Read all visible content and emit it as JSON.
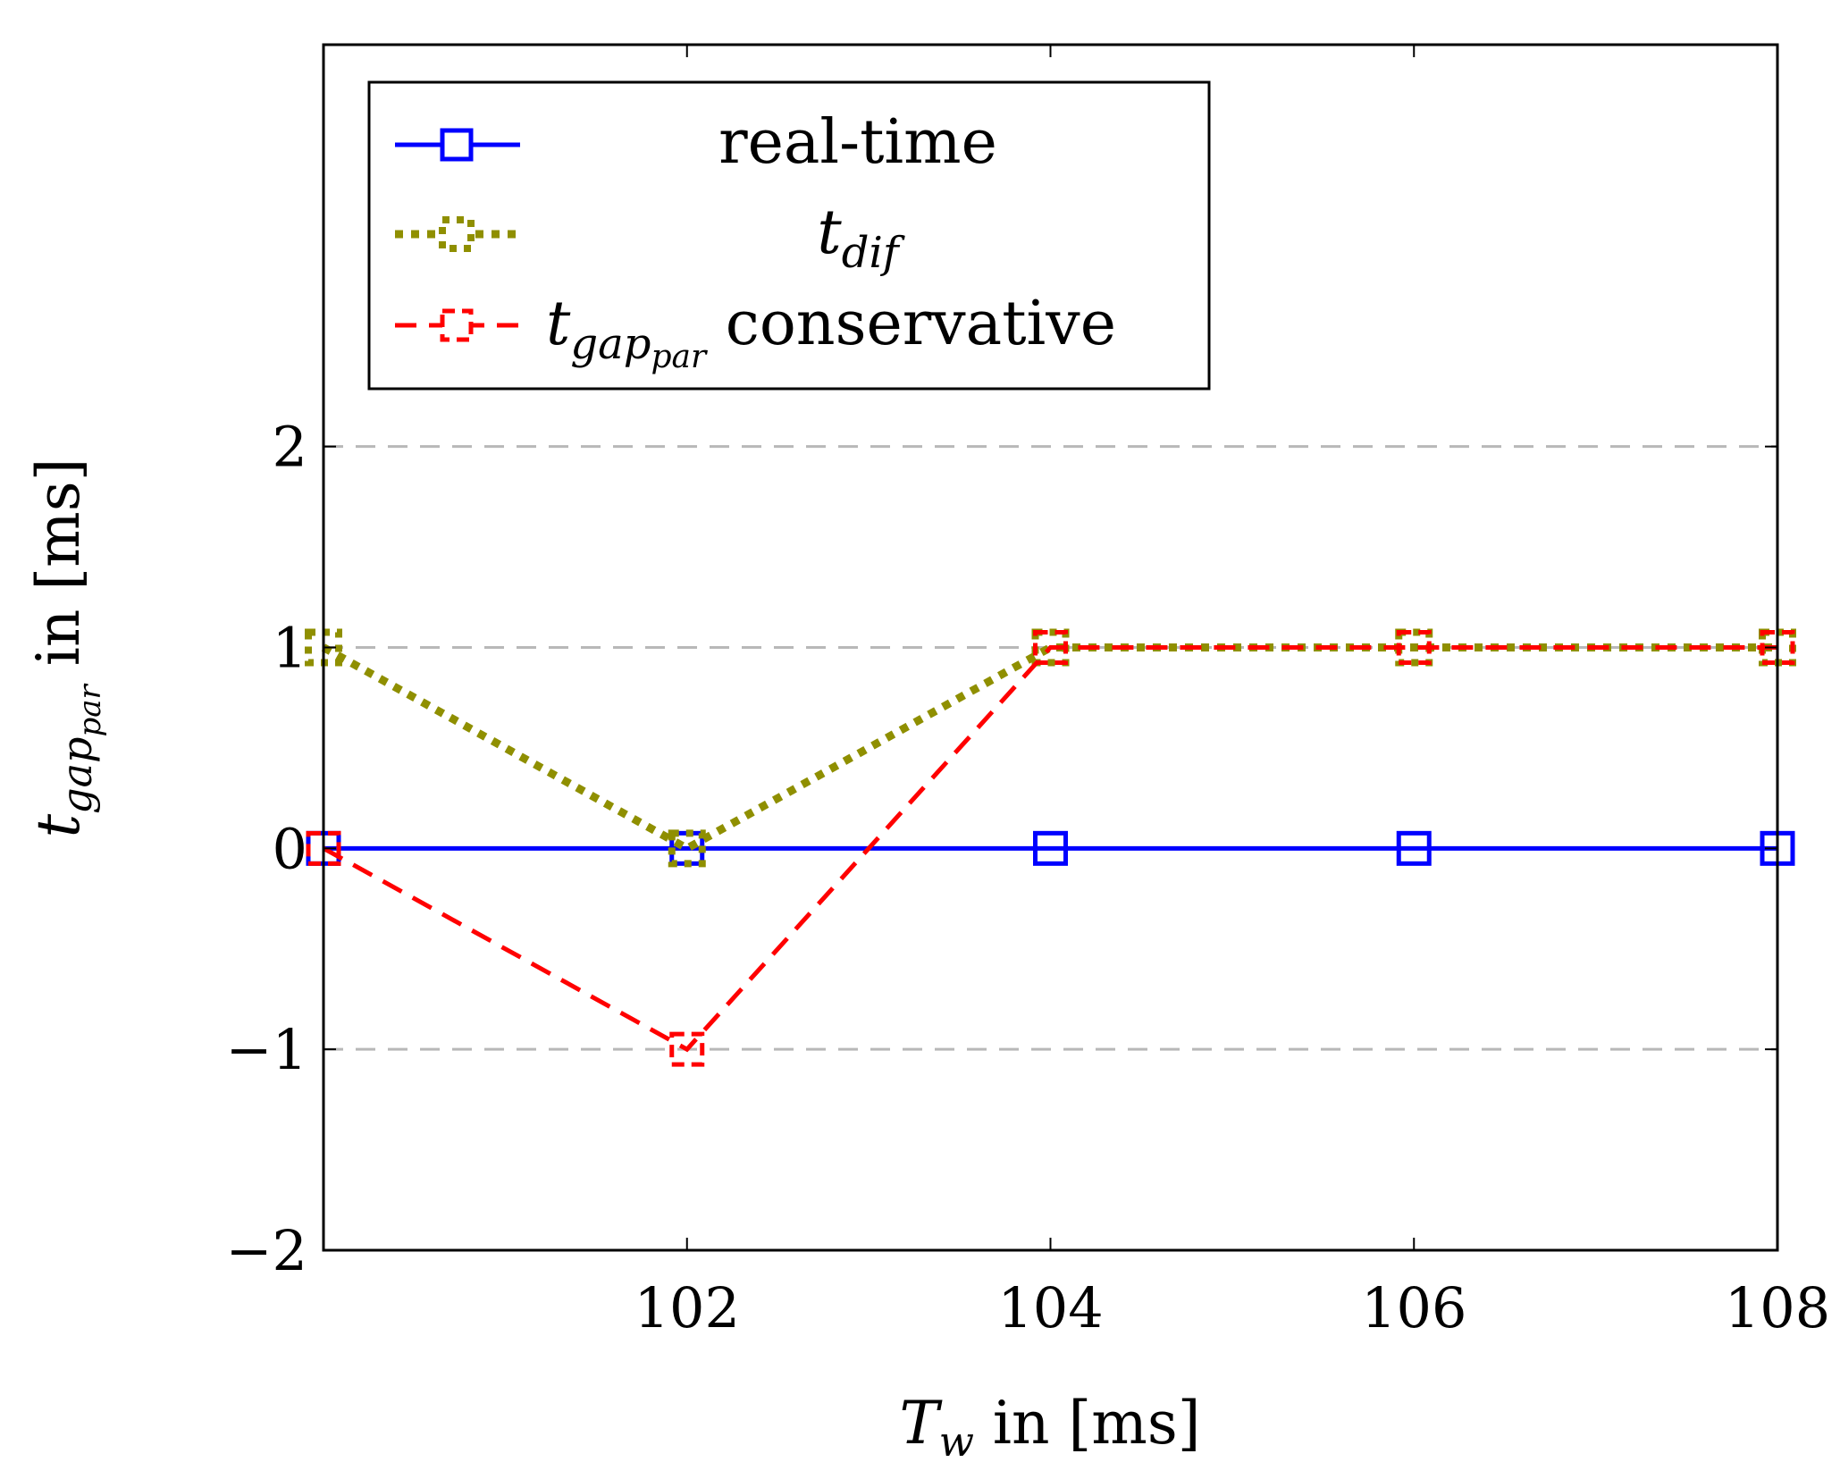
{
  "chart_data": {
    "type": "line",
    "title": "",
    "xlabel": {
      "symbol": "T",
      "subscript": "w",
      "suffix": " in [ms]"
    },
    "ylabel": {
      "symbol": "t",
      "subscript": "gap",
      "subsubscript": "par",
      "suffix": " in [ms]"
    },
    "x": [
      100,
      102,
      104,
      106,
      108
    ],
    "xlim": [
      100,
      108
    ],
    "ylim": [
      -2,
      4
    ],
    "xticks": [
      102,
      104,
      106,
      108
    ],
    "xtick_labels": [
      "102",
      "104",
      "106",
      "108"
    ],
    "yticks": [
      -2,
      -1,
      0,
      1,
      2
    ],
    "ytick_labels": [
      "−2",
      "−1",
      "0",
      "1",
      "2"
    ],
    "grid": "horizontal dashed",
    "legend_position": "top-left",
    "series": [
      {
        "name": "real-time",
        "values": [
          0,
          0,
          0,
          0,
          0
        ],
        "color": "#0000ff",
        "style": "solid",
        "marker": "square"
      },
      {
        "name": "t_dif",
        "label_symbol": "t",
        "label_subscript": "dif",
        "values": [
          1,
          0,
          1,
          1,
          1
        ],
        "color": "#8f8f00",
        "style": "dotted",
        "marker": "square"
      },
      {
        "name": "t_gap_par conservative",
        "label_symbol": "t",
        "label_subscript": "gap",
        "label_subsubscript": "par",
        "label_suffix": " conservative",
        "values": [
          0,
          -1,
          1,
          1,
          1
        ],
        "color": "#ff0000",
        "style": "dashed",
        "marker": "square"
      }
    ]
  }
}
